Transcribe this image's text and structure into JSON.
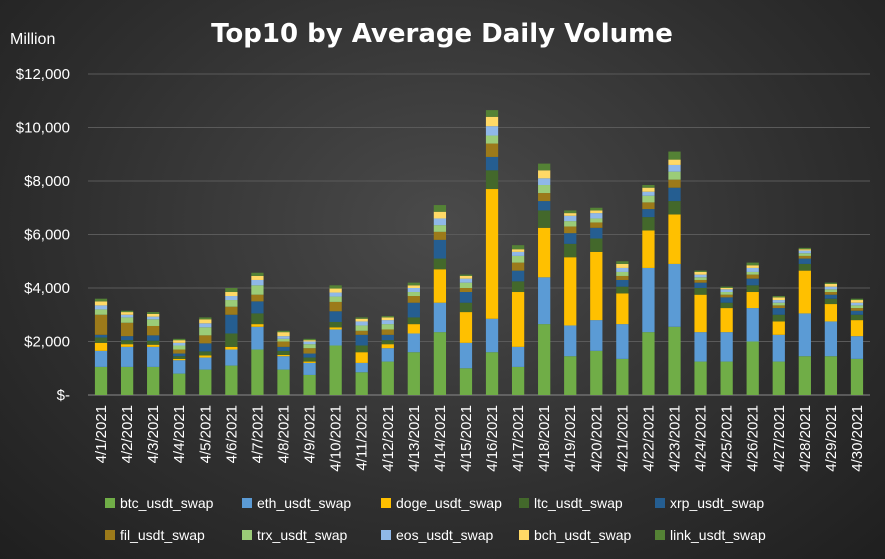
{
  "chart_data": {
    "type": "bar",
    "stacked": true,
    "title": "Top10 by Average Daily Volume",
    "ylabel": "Million",
    "ylim": [
      0,
      12000
    ],
    "yticks": [
      {
        "value": 0,
        "label": "$-"
      },
      {
        "value": 2000,
        "label": "$2,000"
      },
      {
        "value": 4000,
        "label": "$4,000"
      },
      {
        "value": 6000,
        "label": "$6,000"
      },
      {
        "value": 8000,
        "label": "$8,000"
      },
      {
        "value": 10000,
        "label": "$10,000"
      },
      {
        "value": 12000,
        "label": "$12,000"
      }
    ],
    "legend_position": "bottom",
    "categories": [
      "4/1/2021",
      "4/2/2021",
      "4/3/2021",
      "4/4/2021",
      "4/5/2021",
      "4/6/2021",
      "4/7/2021",
      "4/8/2021",
      "4/9/2021",
      "4/10/2021",
      "4/11/2021",
      "4/12/2021",
      "4/13/2021",
      "4/14/2021",
      "4/15/2021",
      "4/16/2021",
      "4/17/2021",
      "4/18/2021",
      "4/19/2021",
      "4/20/2021",
      "4/21/2021",
      "4/22/2021",
      "4/23/2021",
      "4/24/2021",
      "4/25/2021",
      "4/26/2021",
      "4/27/2021",
      "4/28/2021",
      "4/29/2021",
      "4/30/2021"
    ],
    "series": [
      {
        "name": "btc_usdt_swap",
        "color": "#70ad47",
        "values": [
          1050,
          1050,
          1050,
          800,
          950,
          1100,
          1700,
          950,
          750,
          1850,
          850,
          1250,
          1600,
          2350,
          1000,
          1600,
          1050,
          2650,
          1450,
          1650,
          1350,
          2350,
          2550,
          1250,
          1250,
          2000,
          1250,
          1450,
          1450,
          1350
        ]
      },
      {
        "name": "eth_usdt_swap",
        "color": "#5b9bd5",
        "values": [
          600,
          750,
          750,
          500,
          450,
          600,
          850,
          500,
          450,
          600,
          350,
          500,
          700,
          1100,
          950,
          1250,
          750,
          1750,
          1150,
          1150,
          1300,
          2400,
          2350,
          1100,
          1100,
          1250,
          1000,
          1600,
          1300,
          850
        ]
      },
      {
        "name": "doge_usdt_swap",
        "color": "#ffc000",
        "values": [
          300,
          100,
          80,
          50,
          80,
          100,
          100,
          50,
          50,
          80,
          400,
          150,
          350,
          1250,
          1150,
          4850,
          2050,
          1850,
          2550,
          2550,
          1150,
          1400,
          1850,
          1400,
          900,
          600,
          500,
          1600,
          650,
          600
        ]
      },
      {
        "name": "ltc_usdt_swap",
        "color": "#43682b",
        "values": [
          200,
          150,
          150,
          100,
          150,
          500,
          400,
          150,
          150,
          200,
          250,
          150,
          250,
          400,
          350,
          700,
          400,
          650,
          500,
          500,
          250,
          500,
          500,
          250,
          200,
          250,
          250,
          250,
          200,
          200
        ]
      },
      {
        "name": "xrp_usdt_swap",
        "color": "#255e91",
        "values": [
          100,
          150,
          200,
          100,
          300,
          700,
          450,
          150,
          150,
          400,
          400,
          200,
          550,
          700,
          400,
          500,
          400,
          350,
          400,
          400,
          250,
          300,
          500,
          200,
          200,
          250,
          250,
          200,
          150,
          150
        ]
      },
      {
        "name": "fil_usdt_swap",
        "color": "#9c7a1a",
        "values": [
          750,
          500,
          350,
          150,
          300,
          300,
          250,
          200,
          200,
          350,
          150,
          200,
          250,
          300,
          150,
          500,
          300,
          300,
          250,
          200,
          150,
          250,
          300,
          100,
          100,
          150,
          100,
          100,
          100,
          100
        ]
      },
      {
        "name": "trx_usdt_swap",
        "color": "#9bcc78",
        "values": [
          200,
          200,
          250,
          150,
          300,
          250,
          350,
          100,
          150,
          200,
          200,
          200,
          150,
          250,
          200,
          300,
          250,
          300,
          200,
          150,
          150,
          250,
          300,
          100,
          100,
          100,
          100,
          100,
          100,
          100
        ]
      },
      {
        "name": "eos_usdt_swap",
        "color": "#8fb8e8",
        "values": [
          150,
          100,
          100,
          100,
          150,
          150,
          200,
          100,
          100,
          150,
          150,
          150,
          150,
          250,
          150,
          350,
          150,
          250,
          200,
          200,
          150,
          150,
          250,
          100,
          100,
          150,
          100,
          100,
          100,
          100
        ]
      },
      {
        "name": "bch_usdt_swap",
        "color": "#ffd966",
        "values": [
          150,
          100,
          100,
          100,
          150,
          150,
          150,
          150,
          50,
          150,
          100,
          100,
          100,
          250,
          100,
          350,
          100,
          300,
          100,
          100,
          150,
          150,
          200,
          100,
          50,
          100,
          100,
          50,
          100,
          100
        ]
      },
      {
        "name": "link_usdt_swap",
        "color": "#548235",
        "values": [
          100,
          50,
          70,
          50,
          70,
          150,
          120,
          50,
          50,
          120,
          50,
          50,
          100,
          250,
          50,
          250,
          150,
          250,
          100,
          100,
          100,
          100,
          300,
          50,
          50,
          100,
          50,
          50,
          50,
          50
        ]
      }
    ]
  }
}
